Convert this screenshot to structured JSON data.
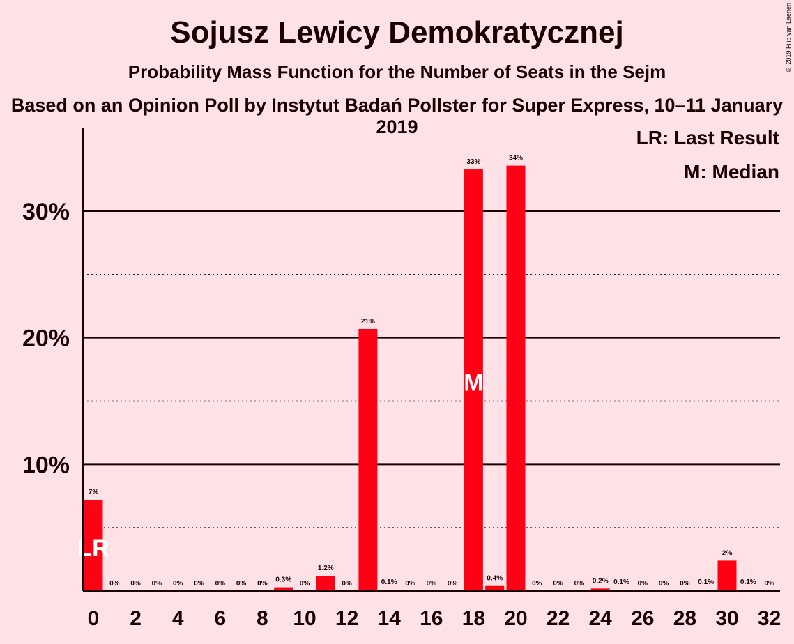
{
  "copyright": "© 2019 Filip van Laenen",
  "legend": {
    "lr": "LR: Last Result",
    "m": "M: Median"
  },
  "colors": {
    "bar": "#FF0015",
    "background": "#FFE2E6",
    "text": "#1a0000"
  },
  "chart_data": {
    "type": "bar",
    "title": "Sojusz Lewicy Demokratycznej",
    "subtitle": "Probability Mass Function for the Number of Seats in the Sejm",
    "subtitle2": "Based on an Opinion Poll by Instytut Badań Pollster for Super Express, 10–11 January 2019",
    "xlabel": "",
    "ylabel": "",
    "ylim": [
      0,
      36
    ],
    "yticks": [
      {
        "value": 10,
        "label": "10%"
      },
      {
        "value": 20,
        "label": "20%"
      },
      {
        "value": 30,
        "label": "30%"
      }
    ],
    "minor_gridlines": [
      5,
      15,
      25
    ],
    "categories": [
      0,
      1,
      2,
      3,
      4,
      5,
      6,
      7,
      8,
      9,
      10,
      11,
      12,
      13,
      14,
      15,
      16,
      17,
      18,
      19,
      20,
      21,
      22,
      23,
      24,
      25,
      26,
      27,
      28,
      29,
      30,
      31,
      32
    ],
    "xtick_labels": [
      "0",
      "2",
      "4",
      "6",
      "8",
      "10",
      "12",
      "14",
      "16",
      "18",
      "20",
      "22",
      "24",
      "26",
      "28",
      "30",
      "32"
    ],
    "values": [
      7.2,
      0,
      0,
      0,
      0,
      0,
      0,
      0,
      0,
      0.3,
      0,
      1.2,
      0,
      20.7,
      0.1,
      0,
      0,
      0,
      33.3,
      0.4,
      33.6,
      0,
      0,
      0,
      0.2,
      0.1,
      0,
      0,
      0,
      0.1,
      2.4,
      0.1,
      0
    ],
    "labels": [
      "7%",
      "0%",
      "0%",
      "0%",
      "0%",
      "0%",
      "0%",
      "0%",
      "0%",
      "0.3%",
      "0%",
      "1.2%",
      "0%",
      "21%",
      "0.1%",
      "0%",
      "0%",
      "0%",
      "33%",
      "0.4%",
      "34%",
      "0%",
      "0%",
      "0%",
      "0.2%",
      "0.1%",
      "0%",
      "0%",
      "0%",
      "0.1%",
      "2%",
      "0.1%",
      "0%"
    ],
    "last_result": {
      "seats": 0,
      "marker": "LR"
    },
    "median": {
      "seats": 18,
      "marker": "M"
    }
  }
}
